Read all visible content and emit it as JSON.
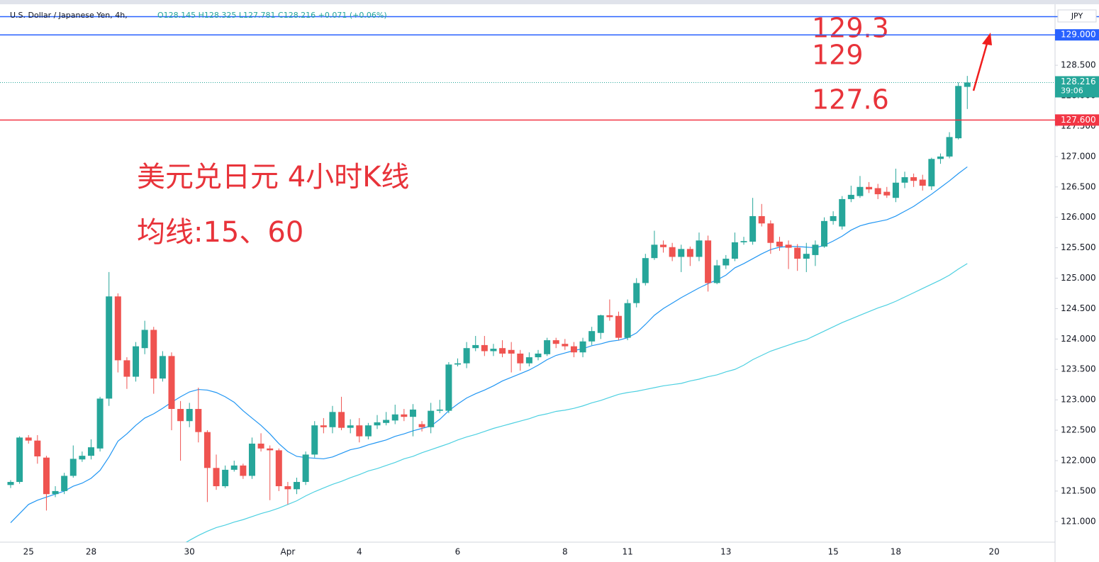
{
  "header": {
    "symbol": "U.S. Dollar / Japanese Yen, 4h,",
    "ohlc": "O128.145 H128.325 L127.781 C128.216 +0.071 (+0.06%)",
    "currency": "JPY"
  },
  "chart_data": {
    "type": "candlestick",
    "annotations": [
      "美元兑日元 4小时K线",
      "均线:15、60"
    ],
    "up_color": "#26a69a",
    "down_color": "#ef5350",
    "categories": [
      null,
      null,
      "25",
      null,
      null,
      null,
      null,
      null,
      null,
      "28",
      null,
      null,
      null,
      null,
      null,
      null,
      null,
      null,
      null,
      null,
      "30",
      null,
      null,
      null,
      null,
      null,
      null,
      null,
      null,
      null,
      null,
      "Apr",
      null,
      null,
      null,
      null,
      null,
      null,
      null,
      "4",
      null,
      null,
      null,
      null,
      null,
      null,
      null,
      null,
      null,
      null,
      "6",
      null,
      null,
      null,
      null,
      null,
      null,
      null,
      null,
      null,
      null,
      null,
      "8",
      null,
      null,
      null,
      null,
      null,
      null,
      "11",
      null,
      null,
      null,
      null,
      null,
      null,
      null,
      null,
      null,
      null,
      "13",
      null,
      null,
      null,
      null,
      null,
      null,
      null,
      null,
      null,
      null,
      null,
      "15",
      null,
      null,
      null,
      null,
      null,
      null,
      "18",
      null,
      null,
      null,
      null,
      null,
      null,
      null,
      null,
      null,
      null,
      "20",
      null,
      null,
      null,
      null,
      null
    ],
    "ohlc": [
      [
        121.6,
        121.68,
        121.55,
        121.65
      ],
      [
        121.65,
        122.4,
        121.62,
        122.38
      ],
      [
        122.38,
        122.42,
        122.28,
        122.33
      ],
      [
        122.33,
        122.42,
        121.95,
        122.07
      ],
      [
        122.05,
        122.08,
        121.18,
        121.45
      ],
      [
        121.45,
        121.58,
        121.4,
        121.5
      ],
      [
        121.5,
        121.8,
        121.45,
        121.75
      ],
      [
        121.75,
        122.25,
        121.72,
        122.03
      ],
      [
        122.02,
        122.15,
        121.98,
        122.08
      ],
      [
        122.08,
        122.35,
        122.02,
        122.22
      ],
      [
        122.2,
        123.05,
        122.15,
        123.02
      ],
      [
        123.02,
        125.1,
        122.9,
        124.7
      ],
      [
        124.7,
        124.75,
        123.45,
        123.65
      ],
      [
        123.65,
        123.7,
        123.18,
        123.38
      ],
      [
        123.38,
        123.95,
        123.3,
        123.88
      ],
      [
        123.85,
        124.3,
        123.75,
        124.15
      ],
      [
        124.15,
        124.2,
        123.1,
        123.35
      ],
      [
        123.35,
        123.8,
        123.3,
        123.72
      ],
      [
        123.72,
        123.78,
        122.5,
        122.85
      ],
      [
        122.85,
        122.98,
        122.0,
        122.65
      ],
      [
        122.65,
        122.95,
        122.55,
        122.85
      ],
      [
        122.85,
        123.2,
        122.3,
        122.47
      ],
      [
        122.47,
        122.5,
        121.32,
        121.88
      ],
      [
        121.88,
        122.1,
        121.52,
        121.58
      ],
      [
        121.58,
        121.92,
        121.55,
        121.85
      ],
      [
        121.85,
        122.0,
        121.82,
        121.92
      ],
      [
        121.92,
        121.95,
        121.7,
        121.75
      ],
      [
        121.75,
        122.38,
        121.7,
        122.28
      ],
      [
        122.28,
        122.45,
        122.15,
        122.2
      ],
      [
        122.2,
        122.25,
        121.35,
        122.17
      ],
      [
        122.17,
        122.2,
        121.5,
        121.58
      ],
      [
        121.58,
        121.65,
        121.28,
        121.53
      ],
      [
        121.53,
        121.72,
        121.45,
        121.65
      ],
      [
        121.65,
        122.15,
        121.6,
        122.1
      ],
      [
        122.1,
        122.65,
        122.05,
        122.58
      ],
      [
        122.58,
        122.7,
        122.45,
        122.55
      ],
      [
        122.55,
        122.9,
        122.45,
        122.8
      ],
      [
        122.8,
        123.05,
        122.5,
        122.54
      ],
      [
        122.54,
        122.68,
        122.45,
        122.58
      ],
      [
        122.58,
        122.7,
        122.3,
        122.4
      ],
      [
        122.4,
        122.62,
        122.35,
        122.58
      ],
      [
        122.58,
        122.75,
        122.52,
        122.63
      ],
      [
        122.62,
        122.8,
        122.58,
        122.67
      ],
      [
        122.66,
        122.92,
        122.6,
        122.76
      ],
      [
        122.76,
        122.85,
        122.65,
        122.72
      ],
      [
        122.72,
        122.93,
        122.4,
        122.84
      ],
      [
        122.6,
        122.65,
        122.48,
        122.55
      ],
      [
        122.55,
        122.95,
        122.45,
        122.82
      ],
      [
        122.82,
        123.0,
        122.78,
        122.84
      ],
      [
        122.82,
        123.62,
        122.78,
        123.58
      ],
      [
        123.58,
        123.68,
        123.55,
        123.6
      ],
      [
        123.6,
        123.95,
        123.52,
        123.85
      ],
      [
        123.85,
        124.05,
        123.8,
        123.9
      ],
      [
        123.9,
        124.05,
        123.72,
        123.8
      ],
      [
        123.8,
        123.92,
        123.72,
        123.84
      ],
      [
        123.85,
        123.98,
        123.7,
        123.76
      ],
      [
        123.82,
        123.95,
        123.45,
        123.76
      ],
      [
        123.76,
        123.82,
        123.48,
        123.6
      ],
      [
        123.6,
        123.78,
        123.55,
        123.7
      ],
      [
        123.7,
        123.82,
        123.65,
        123.76
      ],
      [
        123.75,
        124.02,
        123.72,
        123.98
      ],
      [
        123.98,
        124.02,
        123.85,
        123.92
      ],
      [
        123.92,
        124.0,
        123.82,
        123.88
      ],
      [
        123.88,
        123.95,
        123.7,
        123.78
      ],
      [
        123.78,
        124.02,
        123.7,
        123.96
      ],
      [
        123.96,
        124.2,
        123.9,
        124.13
      ],
      [
        124.1,
        124.4,
        124.0,
        124.39
      ],
      [
        124.39,
        124.65,
        124.3,
        124.36
      ],
      [
        124.38,
        124.45,
        123.98,
        124.02
      ],
      [
        124.02,
        124.65,
        123.98,
        124.59
      ],
      [
        124.59,
        125.0,
        124.52,
        124.92
      ],
      [
        124.92,
        125.4,
        124.88,
        125.33
      ],
      [
        125.33,
        125.78,
        125.3,
        125.55
      ],
      [
        125.55,
        125.62,
        125.42,
        125.51
      ],
      [
        125.51,
        125.58,
        125.28,
        125.35
      ],
      [
        125.35,
        125.55,
        125.1,
        125.48
      ],
      [
        125.48,
        125.52,
        125.2,
        125.35
      ],
      [
        125.35,
        125.75,
        125.28,
        125.62
      ],
      [
        125.62,
        125.7,
        124.78,
        124.92
      ],
      [
        124.92,
        125.3,
        124.9,
        125.21
      ],
      [
        125.21,
        125.38,
        125.15,
        125.32
      ],
      [
        125.32,
        125.75,
        125.28,
        125.59
      ],
      [
        125.59,
        125.68,
        125.55,
        125.61
      ],
      [
        125.6,
        126.32,
        125.55,
        126.02
      ],
      [
        126.02,
        126.22,
        125.85,
        125.9
      ],
      [
        125.9,
        125.95,
        125.4,
        125.58
      ],
      [
        125.6,
        125.68,
        125.45,
        125.52
      ],
      [
        125.55,
        125.62,
        125.15,
        125.5
      ],
      [
        125.5,
        125.56,
        125.12,
        125.32
      ],
      [
        125.32,
        125.58,
        125.1,
        125.4
      ],
      [
        125.38,
        125.62,
        125.2,
        125.55
      ],
      [
        125.52,
        126.0,
        125.5,
        125.94
      ],
      [
        125.94,
        126.1,
        125.88,
        126.02
      ],
      [
        125.85,
        126.35,
        125.8,
        126.3
      ],
      [
        126.3,
        126.52,
        126.25,
        126.37
      ],
      [
        126.35,
        126.68,
        126.32,
        126.5
      ],
      [
        126.5,
        126.58,
        126.4,
        126.46
      ],
      [
        126.48,
        126.55,
        126.3,
        126.38
      ],
      [
        126.42,
        126.5,
        126.32,
        126.36
      ],
      [
        126.32,
        126.8,
        126.25,
        126.57
      ],
      [
        126.57,
        126.75,
        126.48,
        126.66
      ],
      [
        126.66,
        126.72,
        126.5,
        126.6
      ],
      [
        126.62,
        126.7,
        126.44,
        126.52
      ],
      [
        126.51,
        126.98,
        126.45,
        126.96
      ],
      [
        126.96,
        127.05,
        126.88,
        127.0
      ],
      [
        127.0,
        127.4,
        126.97,
        127.32
      ],
      [
        127.3,
        128.22,
        127.28,
        128.16
      ],
      [
        128.145,
        128.325,
        127.781,
        128.216
      ],
      null,
      null,
      null,
      null,
      null,
      null,
      null,
      null
    ],
    "overlays": [
      {
        "color": "#2196f3",
        "values": [
          120.98,
          121.13,
          121.28,
          121.35,
          121.4,
          121.45,
          121.5,
          121.58,
          121.63,
          121.71,
          121.84,
          122.06,
          122.32,
          122.44,
          122.58,
          122.7,
          122.77,
          122.86,
          122.96,
          123.05,
          123.13,
          123.17,
          123.16,
          123.12,
          123.05,
          122.96,
          122.82,
          122.7,
          122.58,
          122.44,
          122.28,
          122.15,
          122.07,
          122.05,
          122.04,
          122.03,
          122.06,
          122.12,
          122.18,
          122.21,
          122.26,
          122.3,
          122.34,
          122.4,
          122.44,
          122.49,
          122.53,
          122.57,
          122.68,
          122.82,
          122.93,
          123.03,
          123.1,
          123.16,
          123.23,
          123.31,
          123.37,
          123.43,
          123.49,
          123.57,
          123.66,
          123.73,
          123.77,
          123.81,
          123.84,
          123.89,
          123.92,
          123.96,
          123.98,
          124.02,
          124.1,
          124.24,
          124.39,
          124.5,
          124.59,
          124.68,
          124.76,
          124.84,
          124.91,
          124.97,
          125.05,
          125.17,
          125.24,
          125.32,
          125.4,
          125.47,
          125.51,
          125.52,
          125.52,
          125.51,
          125.5,
          125.54,
          125.61,
          125.69,
          125.79,
          125.86,
          125.9,
          125.93,
          125.96,
          126.02,
          126.1,
          126.18,
          126.28,
          126.38,
          126.49,
          126.6,
          126.72,
          126.83,
          null,
          null,
          null,
          null,
          null,
          null,
          null,
          null
        ]
      },
      {
        "color": "#4dd0e1",
        "values": [
          null,
          null,
          null,
          null,
          null,
          null,
          null,
          null,
          null,
          null,
          null,
          null,
          null,
          null,
          null,
          null,
          null,
          null,
          null,
          120.6,
          120.69,
          120.77,
          120.84,
          120.9,
          120.94,
          120.99,
          121.03,
          121.08,
          121.13,
          121.17,
          121.22,
          121.28,
          121.34,
          121.42,
          121.49,
          121.55,
          121.61,
          121.66,
          121.72,
          121.77,
          121.83,
          121.87,
          121.92,
          121.97,
          122.03,
          122.07,
          122.13,
          122.18,
          122.23,
          122.28,
          122.34,
          122.39,
          122.43,
          122.48,
          122.53,
          122.57,
          122.61,
          122.65,
          122.69,
          122.74,
          122.77,
          122.81,
          122.83,
          122.86,
          122.9,
          122.95,
          122.99,
          123.04,
          123.09,
          123.12,
          123.14,
          123.17,
          123.2,
          123.23,
          123.25,
          123.27,
          123.31,
          123.34,
          123.38,
          123.41,
          123.46,
          123.5,
          123.57,
          123.66,
          123.73,
          123.8,
          123.85,
          123.9,
          123.95,
          123.99,
          124.06,
          124.13,
          124.2,
          124.27,
          124.33,
          124.39,
          124.45,
          124.51,
          124.56,
          124.62,
          124.69,
          124.76,
          124.83,
          124.9,
          124.97,
          125.05,
          125.15,
          125.24,
          null,
          null,
          null,
          null,
          null,
          null,
          null,
          null
        ]
      }
    ],
    "levels": [
      {
        "value": 129.3,
        "color": "#2962ff"
      },
      {
        "value": 129,
        "color": "#2962ff",
        "tag": "129.000"
      },
      {
        "value": 127.6,
        "color": "#f23645",
        "tag": "127.600"
      }
    ],
    "last_price": {
      "value": 128.216,
      "countdown": "39:06",
      "color": "#26a69a"
    },
    "ylim": [
      120.66,
      129.48
    ],
    "yticks": [
      {
        "value": 121,
        "label": "121.000"
      },
      {
        "value": 121.5,
        "label": "121.500"
      },
      {
        "value": 122,
        "label": "122.000"
      },
      {
        "value": 122.5,
        "label": "122.500"
      },
      {
        "value": 123,
        "label": "123.000"
      },
      {
        "value": 123.5,
        "label": "123.500"
      },
      {
        "value": 124,
        "label": "124.000"
      },
      {
        "value": 124.5,
        "label": "124.500"
      },
      {
        "value": 125,
        "label": "125.000"
      },
      {
        "value": 125.5,
        "label": "125.500"
      },
      {
        "value": 126,
        "label": "126.000"
      },
      {
        "value": 126.5,
        "label": "126.500"
      },
      {
        "value": 127,
        "label": "127.000"
      },
      {
        "value": 127.5,
        "label": "127.500"
      },
      {
        "value": 128,
        "label": "128.000"
      },
      {
        "value": 128.5,
        "label": "128.500"
      }
    ],
    "grid": false
  }
}
